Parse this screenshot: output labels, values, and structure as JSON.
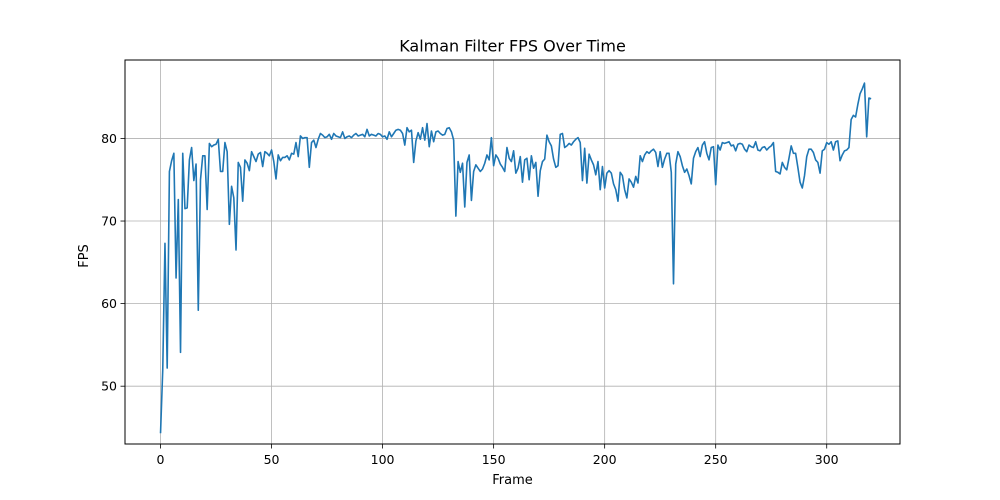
{
  "chart_data": {
    "type": "line",
    "title": "Kalman Filter FPS Over Time",
    "xlabel": "Frame",
    "ylabel": "FPS",
    "xlim": [
      -16,
      333
    ],
    "ylim": [
      43,
      89.5
    ],
    "xticks": [
      0,
      50,
      100,
      150,
      200,
      250,
      300
    ],
    "yticks": [
      50,
      60,
      70,
      80
    ],
    "grid": true,
    "colors": {
      "line": "#1f77b4",
      "grid": "#b0b0b0",
      "axes": "#000000"
    },
    "series": [
      {
        "values": [
          44.3,
          52.0,
          67.3,
          52.2,
          76.0,
          77.3,
          78.2,
          63.1,
          72.6,
          54.1,
          78.2,
          71.5,
          71.6,
          77.4,
          78.9,
          74.9,
          76.9,
          59.2,
          75.0,
          77.9,
          77.9,
          71.4,
          79.4,
          79.0,
          79.2,
          79.3,
          79.9,
          76.0,
          76.0,
          79.5,
          78.4,
          69.6,
          74.2,
          72.8,
          66.5,
          77.1,
          76.5,
          72.4,
          77.4,
          77.0,
          76.1,
          78.4,
          77.8,
          77.2,
          78.1,
          78.3,
          76.6,
          78.4,
          78.2,
          77.9,
          78.6,
          77.2,
          75.1,
          78.0,
          77.3,
          77.7,
          77.7,
          77.9,
          77.4,
          78.2,
          78.1,
          79.5,
          77.8,
          80.3,
          80.0,
          80.1,
          80.1,
          76.5,
          79.5,
          79.8,
          78.9,
          79.9,
          80.6,
          80.4,
          80.1,
          80.2,
          80.5,
          79.9,
          80.6,
          80.3,
          80.2,
          80.1,
          80.8,
          80.0,
          80.2,
          80.3,
          80.1,
          80.4,
          80.6,
          80.3,
          80.4,
          80.5,
          80.2,
          81.1,
          80.3,
          80.5,
          80.4,
          80.3,
          80.6,
          80.5,
          80.2,
          80.3,
          79.9,
          80.8,
          80.2,
          80.6,
          81.0,
          81.1,
          81.0,
          80.6,
          79.2,
          81.3,
          80.8,
          81.0,
          77.1,
          79.7,
          80.7,
          79.9,
          81.3,
          79.8,
          81.8,
          79.0,
          80.9,
          79.6,
          80.8,
          80.9,
          80.6,
          80.4,
          80.5,
          81.2,
          81.3,
          80.8,
          79.8,
          70.6,
          77.2,
          75.9,
          77.0,
          71.7,
          77.1,
          78.0,
          72.5,
          76.0,
          76.8,
          76.4,
          76.0,
          76.3,
          77.0,
          78.0,
          77.4,
          80.1,
          76.7,
          78.0,
          77.6,
          76.9,
          76.5,
          76.0,
          78.9,
          77.6,
          77.2,
          78.5,
          75.8,
          76.4,
          77.8,
          74.7,
          77.4,
          77.6,
          75.0,
          77.9,
          76.4,
          77.1,
          73.0,
          76.1,
          77.2,
          77.5,
          80.4,
          79.6,
          79.1,
          77.5,
          76.5,
          76.7,
          80.5,
          80.6,
          78.9,
          79.1,
          79.4,
          79.2,
          79.6,
          79.9,
          80.1,
          79.5,
          74.9,
          78.8,
          74.6,
          78.1,
          77.4,
          76.8,
          75.6,
          77.2,
          73.8,
          76.6,
          74.0,
          75.8,
          76.1,
          75.8,
          74.5,
          73.8,
          72.4,
          75.9,
          75.5,
          73.8,
          72.8,
          75.1,
          74.7,
          74.1,
          75.4,
          74.6,
          77.9,
          77.2,
          78.0,
          78.4,
          78.2,
          78.5,
          78.7,
          78.3,
          76.6,
          78.4,
          76.5,
          77.5,
          78.2,
          78.2,
          75.9,
          62.4,
          76.9,
          78.4,
          77.8,
          76.7,
          75.9,
          76.3,
          75.5,
          74.5,
          77.6,
          78.4,
          78.9,
          77.8,
          79.2,
          79.6,
          78.2,
          77.4,
          78.9,
          79.0,
          74.4,
          79.2,
          78.6,
          79.5,
          79.4,
          79.5,
          79.6,
          79.1,
          79.2,
          78.5,
          79.3,
          79.4,
          79.3,
          78.7,
          78.4,
          79.2,
          79.0,
          78.9,
          79.6,
          78.6,
          78.5,
          78.9,
          79.0,
          78.6,
          78.9,
          79.1,
          79.5,
          76.0,
          75.9,
          75.7,
          77.1,
          76.5,
          76.2,
          77.6,
          79.1,
          78.2,
          78.2,
          76.5,
          74.7,
          74.0,
          75.5,
          77.8,
          78.7,
          78.7,
          78.3,
          77.4,
          77.1,
          75.8,
          78.5,
          78.7,
          79.5,
          79.3,
          79.6,
          78.6,
          79.6,
          79.7,
          77.3,
          78.0,
          78.5,
          78.6,
          78.9,
          82.3,
          82.8,
          82.6,
          84.1,
          85.4,
          86.0,
          86.7,
          80.2,
          84.9,
          84.8
        ]
      }
    ]
  }
}
